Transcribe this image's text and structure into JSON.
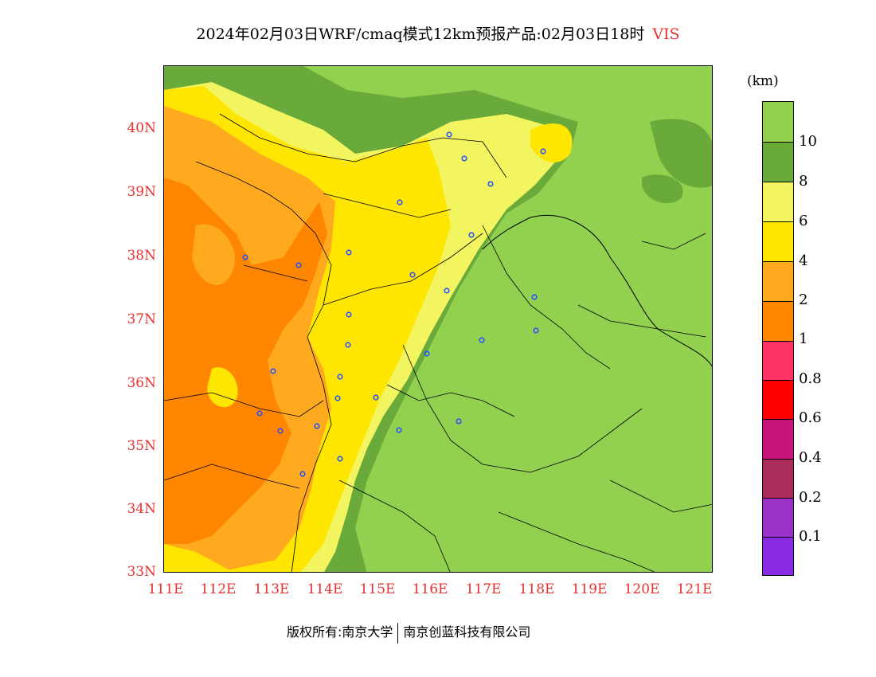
{
  "title": {
    "main": "2024年02月03日WRF/cmaq模式12km预报产品:02月03日18时",
    "variable": "VIS"
  },
  "map": {
    "lat_labels": [
      "40N",
      "39N",
      "38N",
      "37N",
      "36N",
      "35N",
      "34N",
      "33N"
    ],
    "lon_labels": [
      "111E",
      "112E",
      "113E",
      "114E",
      "115E",
      "116E",
      "117E",
      "118E",
      "119E",
      "120E",
      "121E"
    ],
    "extent": {
      "lon_min": 111,
      "lon_max": 121.4,
      "lat_min": 33,
      "lat_max": 40.95
    }
  },
  "legend": {
    "unit": "(km)",
    "labels": [
      "10",
      "8",
      "6",
      "4",
      "2",
      "1",
      "0.8",
      "0.6",
      "0.4",
      "0.2",
      "0.1"
    ],
    "colors": [
      "#92d050",
      "#6aaa3a",
      "#f2f55f",
      "#ffe600",
      "#ffaa1e",
      "#ff8600",
      "#ff3264",
      "#ff0000",
      "#c8147d",
      "#aa2c5a",
      "#9a32c8",
      "#8a2be2"
    ]
  },
  "colors": {
    "vis_gt10": "#92d050",
    "vis_8_10": "#6aaa3a",
    "vis_6_8": "#f2f55f",
    "vis_4_6": "#ffe600",
    "vis_2_4": "#ffaa1e",
    "vis_1_2": "#ff8600",
    "city_marker": "#2850ff",
    "tick_text": "#e8312e"
  },
  "footer": {
    "copyright": "版权所有:南京大学",
    "company": "南京创蓝科技有限公司"
  }
}
